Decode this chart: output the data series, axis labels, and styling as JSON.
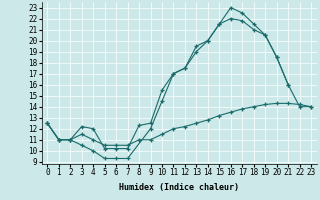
{
  "xlabel": "Humidex (Indice chaleur)",
  "background_color": "#cce8e8",
  "line_color": "#1a6b6b",
  "grid_color": "#ffffff",
  "xlim": [
    -0.5,
    23.5
  ],
  "ylim": [
    8.8,
    23.5
  ],
  "yticks": [
    9,
    10,
    11,
    12,
    13,
    14,
    15,
    16,
    17,
    18,
    19,
    20,
    21,
    22,
    23
  ],
  "xticks": [
    0,
    1,
    2,
    3,
    4,
    5,
    6,
    7,
    8,
    9,
    10,
    11,
    12,
    13,
    14,
    15,
    16,
    17,
    18,
    19,
    20,
    21,
    22,
    23
  ],
  "line1_x": [
    0,
    1,
    2,
    3,
    4,
    5,
    6,
    7,
    9,
    10,
    11,
    12,
    13,
    14,
    15,
    16,
    17,
    18,
    19,
    20,
    21
  ],
  "line1_y": [
    12.5,
    11.0,
    11.0,
    10.5,
    10.0,
    9.3,
    9.3,
    9.3,
    12.0,
    14.5,
    17.0,
    17.5,
    19.5,
    20.0,
    21.5,
    23.0,
    22.5,
    21.5,
    20.5,
    18.5,
    16.0
  ],
  "line2_x": [
    0,
    1,
    2,
    3,
    4,
    5,
    6,
    7,
    8,
    9,
    10,
    11,
    12,
    13,
    14,
    15,
    16,
    17,
    18,
    19,
    20,
    21,
    22,
    23
  ],
  "line2_y": [
    12.5,
    11.0,
    11.0,
    12.2,
    12.0,
    10.2,
    10.2,
    10.2,
    12.3,
    12.5,
    15.5,
    17.0,
    17.5,
    19.0,
    20.0,
    21.5,
    22.0,
    21.8,
    21.0,
    20.5,
    18.5,
    16.0,
    14.0,
    14.0
  ],
  "line3_x": [
    0,
    1,
    2,
    3,
    4,
    5,
    6,
    7,
    8,
    9,
    10,
    11,
    12,
    13,
    14,
    15,
    16,
    17,
    18,
    19,
    20,
    21,
    22,
    23
  ],
  "line3_y": [
    12.5,
    11.0,
    11.0,
    11.5,
    11.0,
    10.5,
    10.5,
    10.5,
    11.0,
    11.0,
    11.5,
    12.0,
    12.2,
    12.5,
    12.8,
    13.2,
    13.5,
    13.8,
    14.0,
    14.2,
    14.3,
    14.3,
    14.2,
    14.0
  ]
}
